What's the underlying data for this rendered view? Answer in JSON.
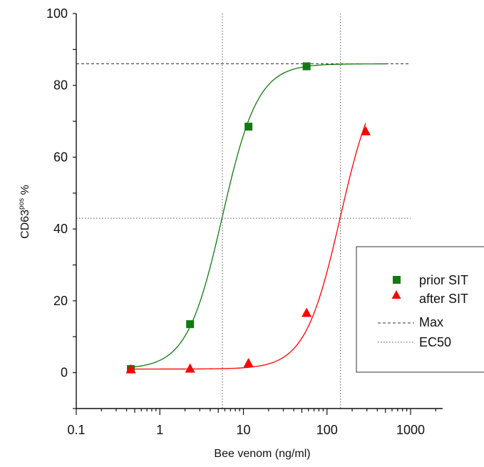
{
  "chart_data": {
    "type": "scatter",
    "title": "",
    "xlabel": "Bee venom (ng/ml)",
    "ylabel_main": "CD63",
    "ylabel_sup": "pos",
    "ylabel_unit": "%",
    "xscale": "log",
    "xlim": [
      0.1,
      2500
    ],
    "ylim": [
      -10,
      100
    ],
    "xticks": [
      0.1,
      1,
      10,
      100,
      1000
    ],
    "xtick_labels": [
      "0.1",
      "1",
      "10",
      "100",
      "1000"
    ],
    "yticks": [
      0,
      20,
      40,
      60,
      80,
      100
    ],
    "ytick_labels": [
      "0",
      "20",
      "40",
      "60",
      "80",
      "100"
    ],
    "grid": false,
    "legend_position": "right",
    "series": [
      {
        "name": "prior SIT",
        "marker": "square",
        "color": "#127a12",
        "x": [
          0.45,
          2.3,
          11.5,
          57
        ],
        "y": [
          1,
          13.5,
          68.5,
          85.3
        ],
        "fit": {
          "bottom": 1,
          "top": 86,
          "ec50": 5.6,
          "hill": 2.05,
          "x_range": [
            0.45,
            520
          ]
        }
      },
      {
        "name": "after SIT",
        "marker": "triangle",
        "color": "#ff0000",
        "x": [
          0.45,
          2.3,
          11.5,
          57,
          290
        ],
        "y": [
          1,
          1.2,
          2.7,
          16.7,
          67.3
        ],
        "fit": {
          "bottom": 1,
          "top": 86,
          "ec50": 145,
          "hill": 2.05,
          "x_range": [
            0.45,
            290
          ]
        }
      }
    ],
    "reference_lines": [
      {
        "name": "Max",
        "style": "dashed",
        "color": "#333333",
        "axis": "y",
        "value": 86
      },
      {
        "name": "EC50",
        "style": "dotted",
        "color": "#555555",
        "axis": "y",
        "value": 43
      },
      {
        "name": "EC50 prior SIT",
        "style": "dotted",
        "color": "#555555",
        "axis": "x",
        "value": 5.6
      },
      {
        "name": "EC50 after SIT",
        "style": "dotted",
        "color": "#555555",
        "axis": "x",
        "value": 145
      }
    ]
  }
}
